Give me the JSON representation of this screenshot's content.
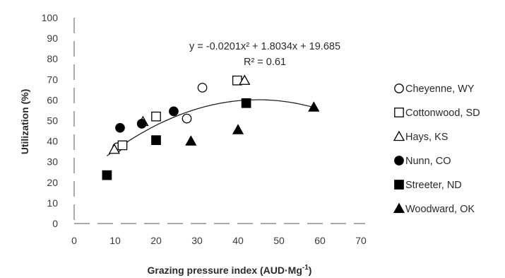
{
  "chart_data": {
    "type": "scatter",
    "xlabel": "Grazing pressure index (AUD·Mg",
    "xlabel_sup": "-1",
    "xlabel_close": ")",
    "ylabel": "Utilization (%)",
    "xlim": [
      0,
      70
    ],
    "ylim": [
      0,
      100
    ],
    "xticks": [
      0,
      10,
      20,
      30,
      40,
      50,
      60,
      70
    ],
    "yticks": [
      0,
      10,
      20,
      30,
      40,
      50,
      60,
      70,
      80,
      90,
      100
    ],
    "grid": false,
    "legend_position": "right",
    "series": [
      {
        "name": "Cheyenne, WY",
        "marker": "circle-open",
        "points": [
          [
            10.5,
            37
          ],
          [
            27.5,
            51
          ],
          [
            31.3,
            66
          ]
        ]
      },
      {
        "name": "Cottonwood, SD",
        "marker": "square-open",
        "points": [
          [
            11.8,
            38
          ],
          [
            20,
            52
          ],
          [
            39.8,
            69.5
          ]
        ]
      },
      {
        "name": "Hays, KS",
        "marker": "triangle-open",
        "points": [
          [
            9.8,
            36
          ],
          [
            16.8,
            49.5
          ],
          [
            41.6,
            69.5
          ]
        ]
      },
      {
        "name": "Nunn, CO",
        "marker": "circle-filled",
        "points": [
          [
            11.2,
            46.5
          ],
          [
            16.5,
            48.5
          ],
          [
            24.3,
            54.5
          ]
        ]
      },
      {
        "name": "Streeter, ND",
        "marker": "square-filled",
        "points": [
          [
            8,
            23.5
          ],
          [
            20,
            40.5
          ],
          [
            42,
            58.5
          ]
        ]
      },
      {
        "name": "Woodward, OK",
        "marker": "triangle-filled",
        "points": [
          [
            28.5,
            40
          ],
          [
            40,
            45.5
          ],
          [
            58.5,
            56.5
          ]
        ]
      }
    ],
    "trendline": {
      "type": "polynomial",
      "coefficients": [
        -0.0201,
        1.8034,
        19.685
      ],
      "x_range": [
        8,
        58
      ],
      "equation_label": "y = -0.0201x² + 1.8034x + 19.685",
      "r2_label": "R² = 0.61"
    }
  }
}
